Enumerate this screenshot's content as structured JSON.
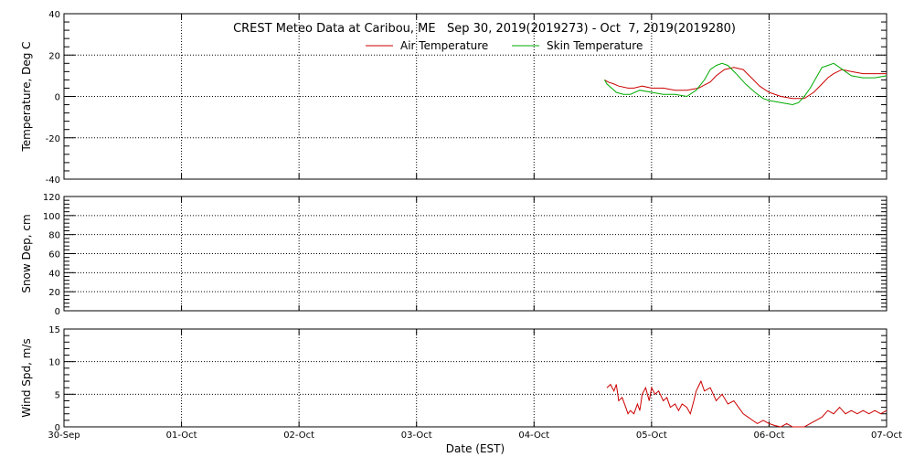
{
  "title": "CREST Meteo Data at Caribou, ME   Sep 30, 2019(2019273) - Oct  7, 2019(2019280)",
  "xlabel": "Date (EST)",
  "x_ticks": [
    "30-Sep",
    "01-Oct",
    "02-Oct",
    "03-Oct",
    "04-Oct",
    "05-Oct",
    "06-Oct",
    "07-Oct"
  ],
  "colors": {
    "air": "#cc0000",
    "skin": "#00aa00",
    "wind": "#cc0000"
  },
  "chart_data": [
    {
      "type": "line",
      "ylabel": "Temperature, Deg C",
      "xlim": [
        0,
        7
      ],
      "ylim": [
        -40,
        40
      ],
      "y_ticks": [
        "-40",
        "-20",
        "0",
        "20",
        "40"
      ],
      "y_tick_values": [
        -40,
        -20,
        0,
        20,
        40
      ],
      "grid": true,
      "legend": "top-center",
      "series": [
        {
          "name": "Air Temperature",
          "color_key": "air",
          "x": [
            4.6,
            4.63,
            4.68,
            4.72,
            4.8,
            4.85,
            4.92,
            5.0,
            5.1,
            5.2,
            5.3,
            5.4,
            5.5,
            5.55,
            5.62,
            5.7,
            5.78,
            5.85,
            5.92,
            6.0,
            6.1,
            6.2,
            6.3,
            6.38,
            6.45,
            6.5,
            6.55,
            6.62,
            6.7,
            6.8,
            6.9,
            7.0
          ],
          "y": [
            8,
            7,
            6,
            5,
            4,
            4,
            5,
            4,
            4,
            3,
            3,
            4,
            7,
            10,
            13,
            14,
            13,
            9,
            5,
            2,
            0,
            -1,
            -1,
            2,
            6,
            9,
            11,
            13,
            12,
            11,
            11,
            11
          ]
        },
        {
          "name": "Skin Temperature",
          "color_key": "skin",
          "x": [
            4.6,
            4.62,
            4.66,
            4.7,
            4.76,
            4.82,
            4.9,
            5.0,
            5.1,
            5.2,
            5.3,
            5.38,
            5.45,
            5.5,
            5.55,
            5.6,
            5.65,
            5.72,
            5.8,
            5.88,
            5.95,
            6.0,
            6.1,
            6.2,
            6.25,
            6.3,
            6.35,
            6.4,
            6.45,
            6.5,
            6.55,
            6.6,
            6.65,
            6.7,
            6.8,
            6.9,
            7.0
          ],
          "y": [
            8,
            6,
            4,
            2,
            1,
            1,
            3,
            2,
            1,
            1,
            0,
            3,
            8,
            13,
            15,
            16,
            15,
            11,
            6,
            2,
            -1,
            -2,
            -3,
            -4,
            -3,
            0,
            4,
            9,
            14,
            15,
            16,
            14,
            12,
            10,
            9,
            9,
            10
          ]
        }
      ]
    },
    {
      "type": "line",
      "ylabel": "Snow Dep, cm",
      "xlim": [
        0,
        7
      ],
      "ylim": [
        0,
        120
      ],
      "y_ticks": [
        "0",
        "20",
        "40",
        "60",
        "80",
        "100",
        "120"
      ],
      "y_tick_values": [
        0,
        20,
        40,
        60,
        80,
        100,
        120
      ],
      "grid": true,
      "series": []
    },
    {
      "type": "line",
      "ylabel": "Wind Spd, m/s",
      "xlim": [
        0,
        7
      ],
      "ylim": [
        0,
        15
      ],
      "y_ticks": [
        "0",
        "5",
        "10",
        "15"
      ],
      "y_tick_values": [
        0,
        5,
        10,
        15
      ],
      "grid": true,
      "series": [
        {
          "color_key": "wind",
          "x": [
            4.62,
            4.65,
            4.68,
            4.7,
            4.72,
            4.75,
            4.78,
            4.8,
            4.82,
            4.85,
            4.88,
            4.9,
            4.92,
            4.95,
            4.98,
            5.0,
            5.03,
            5.06,
            5.1,
            5.13,
            5.16,
            5.2,
            5.23,
            5.26,
            5.3,
            5.33,
            5.36,
            5.38,
            5.42,
            5.45,
            5.5,
            5.55,
            5.6,
            5.65,
            5.7,
            5.74,
            5.78,
            5.82,
            5.86,
            5.9,
            5.95,
            6.0,
            6.05,
            6.1,
            6.15,
            6.2,
            6.25,
            6.3,
            6.35,
            6.4,
            6.45,
            6.5,
            6.55,
            6.6,
            6.65,
            6.7,
            6.75,
            6.8,
            6.85,
            6.9,
            6.95,
            7.0
          ],
          "y": [
            6,
            6.5,
            5.5,
            6.5,
            4,
            4.5,
            3,
            2,
            2.5,
            2,
            3.5,
            2.5,
            5,
            6,
            4,
            6,
            5,
            5.5,
            4,
            4.5,
            3,
            3.5,
            2.5,
            3.5,
            3,
            2,
            4,
            5.5,
            7,
            5.5,
            6,
            4,
            5,
            3.5,
            4,
            3,
            2,
            1.5,
            1,
            0.5,
            1,
            0.5,
            0.2,
            0,
            0.5,
            0,
            0,
            0,
            0.5,
            1,
            1.5,
            2.5,
            2,
            3,
            2,
            2.5,
            2,
            2.5,
            2,
            2.5,
            2,
            2.5
          ]
        }
      ]
    }
  ]
}
